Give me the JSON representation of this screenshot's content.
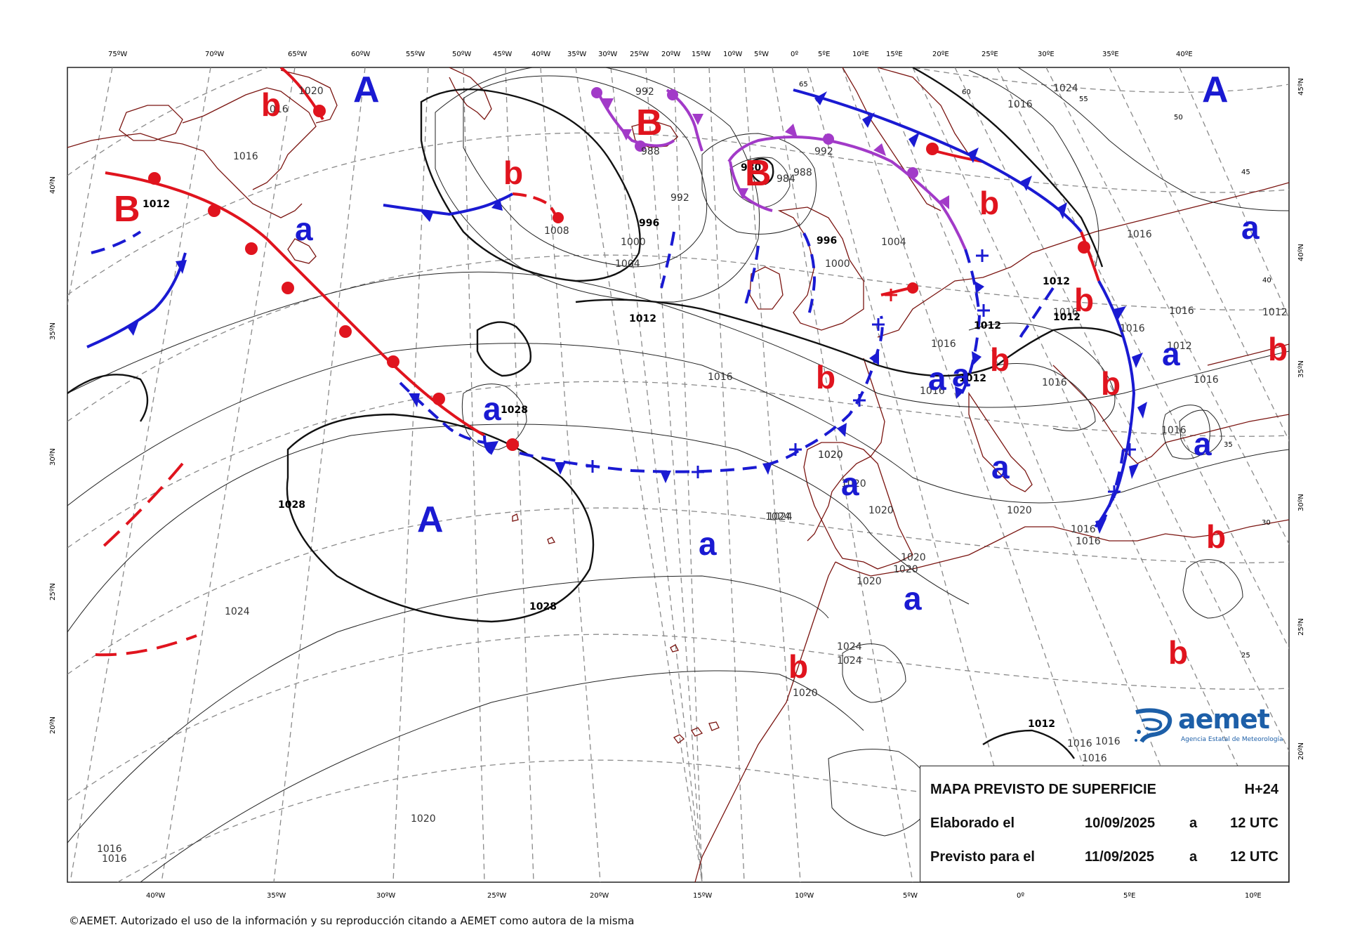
{
  "map": {
    "lon_top": [
      "75ºW",
      "70ºW",
      "65ºW",
      "60ºW",
      "55ºW",
      "50ºW",
      "45ºW",
      "40ºW",
      "35ºW",
      "30ºW",
      "25ºW",
      "20ºW",
      "15ºW",
      "10ºW",
      "5ºW",
      "0º",
      "5ºE",
      "10ºE",
      "15ºE",
      "20ºE",
      "25ºE",
      "30ºE",
      "35ºE",
      "40ºE"
    ],
    "lon_bottom": [
      "40ºW",
      "35ºW",
      "30ºW",
      "25ºW",
      "20ºW",
      "15ºW",
      "10ºW",
      "5ºW",
      "0º",
      "5ºE",
      "10ºE"
    ],
    "lat_left": [
      "40ºN",
      "35ºN",
      "30ºN",
      "25ºN",
      "20ºN"
    ],
    "lat_right": [
      "45ºN",
      "40ºN",
      "35ºN",
      "30ºN",
      "25ºN",
      "20ºN"
    ],
    "grid_labels_inner": [
      "65",
      "60",
      "55",
      "50",
      "45",
      "40",
      "35",
      "30",
      "25"
    ],
    "pressure_centers": [
      {
        "type": "high",
        "label": "A"
      },
      {
        "type": "high",
        "label": "A"
      },
      {
        "type": "high",
        "label": "A"
      },
      {
        "type": "low",
        "label": "B"
      },
      {
        "type": "low",
        "label": "B"
      },
      {
        "type": "low",
        "label": "B"
      },
      {
        "type": "high-minor",
        "label": "a"
      },
      {
        "type": "high-minor",
        "label": "a"
      },
      {
        "type": "high-minor",
        "label": "a"
      },
      {
        "type": "high-minor",
        "label": "a"
      },
      {
        "type": "high-minor",
        "label": "a"
      },
      {
        "type": "high-minor",
        "label": "a"
      },
      {
        "type": "high-minor",
        "label": "a"
      },
      {
        "type": "high-minor",
        "label": "a"
      },
      {
        "type": "high-minor",
        "label": "a"
      },
      {
        "type": "high-minor",
        "label": "a"
      },
      {
        "type": "high-minor",
        "label": "a"
      },
      {
        "type": "low-minor",
        "label": "b"
      },
      {
        "type": "low-minor",
        "label": "b"
      },
      {
        "type": "low-minor",
        "label": "b"
      },
      {
        "type": "low-minor",
        "label": "b"
      },
      {
        "type": "low-minor",
        "label": "b"
      },
      {
        "type": "low-minor",
        "label": "b"
      },
      {
        "type": "low-minor",
        "label": "b"
      },
      {
        "type": "low-minor",
        "label": "b"
      },
      {
        "type": "low-minor",
        "label": "b"
      },
      {
        "type": "low-minor",
        "label": "b"
      },
      {
        "type": "low-minor",
        "label": "b"
      },
      {
        "type": "low-minor",
        "label": "b"
      }
    ],
    "isobar_labels": [
      "1020",
      "1016",
      "1016",
      "1012",
      "1008",
      "1000",
      "1004",
      "996",
      "992",
      "980",
      "984",
      "988",
      "992",
      "996",
      "1000",
      "1004",
      "1012",
      "1016",
      "1028",
      "1028",
      "1028",
      "1024",
      "1024",
      "1020",
      "1016",
      "1016",
      "1012",
      "1012",
      "1012",
      "1012",
      "1016",
      "1016",
      "1016",
      "1016",
      "1020",
      "1020",
      "1020",
      "1020",
      "1020",
      "1020",
      "1020",
      "1024",
      "1024",
      "1020",
      "1012",
      "1016",
      "1016",
      "1016",
      "1016",
      "1016",
      "1020",
      "1024",
      "1016",
      "1016",
      "1016",
      "1024",
      "992",
      "988",
      "1012",
      "1016",
      "1016",
      "1012",
      "1016"
    ],
    "colors": {
      "warm_front": "#e0141e",
      "cold_front": "#1a1ad2",
      "occluded_front": "#a23ac8",
      "coast": "#7a1410",
      "isobar": "#222222",
      "grid": "#888888"
    }
  },
  "info": {
    "title": "MAPA PREVISTO DE SUPERFICIE",
    "lead": "H+24",
    "row2_label": "Elaborado el",
    "row2_date": "10/09/2025",
    "row2_a": "a",
    "row2_time": "12 UTC",
    "row3_label": "Previsto para el",
    "row3_date": "11/09/2025",
    "row3_a": "a",
    "row3_time": "12 UTC"
  },
  "logo": {
    "name": "aemet",
    "subtitle": "Agencia Estatal de Meteorología"
  },
  "footer": {
    "copyright": "©AEMET. Autorizado el uso de la información y su reproducción citando a AEMET como autora de la misma"
  }
}
